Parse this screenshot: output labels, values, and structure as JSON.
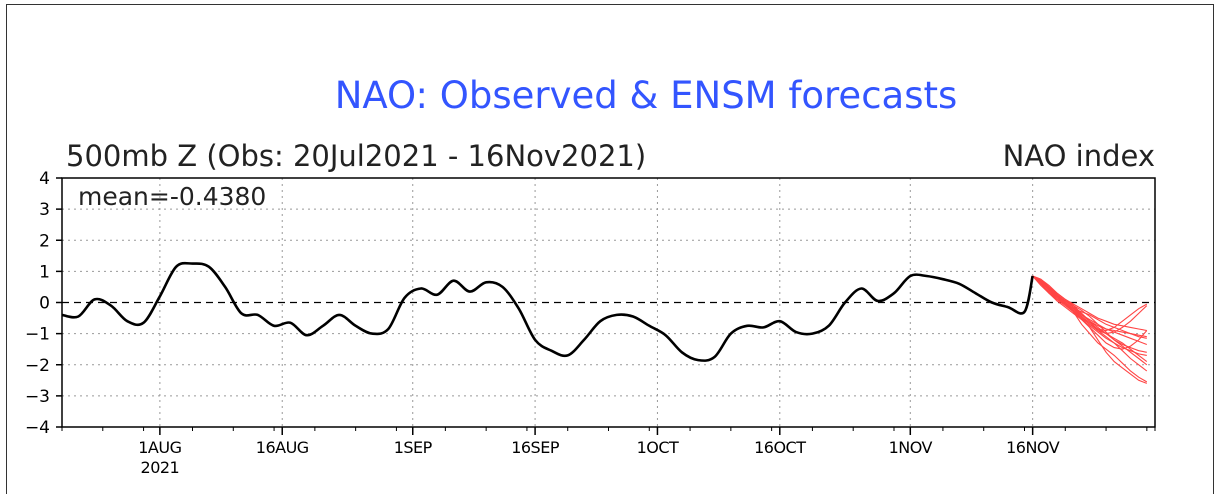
{
  "chart_data": {
    "type": "line",
    "title": "NAO: Observed & ENSM forecasts",
    "subtitle_left": "500mb Z (Obs: 20Jul2021 - 16Nov2021)",
    "subtitle_right": "NAO index",
    "annotation": "mean=-0.4380",
    "ylim": [
      -4,
      4
    ],
    "yticks": [
      4,
      3,
      2,
      1,
      0,
      -1,
      -2,
      -3,
      -4
    ],
    "x_range": [
      "2021-07-20",
      "2021-12-01"
    ],
    "x_ticks": [
      {
        "date": "2021-08-01",
        "label": "1AUG",
        "year": "2021"
      },
      {
        "date": "2021-08-16",
        "label": "16AUG"
      },
      {
        "date": "2021-09-01",
        "label": "1SEP"
      },
      {
        "date": "2021-09-16",
        "label": "16SEP"
      },
      {
        "date": "2021-10-01",
        "label": "1OCT"
      },
      {
        "date": "2021-10-16",
        "label": "16OCT"
      },
      {
        "date": "2021-11-01",
        "label": "1NOV"
      },
      {
        "date": "2021-11-16",
        "label": "16NOV"
      }
    ],
    "grid": true,
    "zero_line": "dashed",
    "colors": {
      "observed": "#000000",
      "forecast": "#ff4444",
      "title": "#3355ff"
    },
    "observed": {
      "x": [
        "2021-07-20",
        "2021-07-22",
        "2021-07-24",
        "2021-07-26",
        "2021-07-28",
        "2021-07-30",
        "2021-08-01",
        "2021-08-03",
        "2021-08-05",
        "2021-08-07",
        "2021-08-09",
        "2021-08-11",
        "2021-08-13",
        "2021-08-15",
        "2021-08-17",
        "2021-08-19",
        "2021-08-21",
        "2021-08-23",
        "2021-08-25",
        "2021-08-27",
        "2021-08-29",
        "2021-08-31",
        "2021-09-02",
        "2021-09-04",
        "2021-09-06",
        "2021-09-08",
        "2021-09-10",
        "2021-09-12",
        "2021-09-14",
        "2021-09-16",
        "2021-09-18",
        "2021-09-20",
        "2021-09-22",
        "2021-09-24",
        "2021-09-26",
        "2021-09-28",
        "2021-09-30",
        "2021-10-02",
        "2021-10-04",
        "2021-10-06",
        "2021-10-08",
        "2021-10-10",
        "2021-10-12",
        "2021-10-14",
        "2021-10-16",
        "2021-10-18",
        "2021-10-20",
        "2021-10-22",
        "2021-10-24",
        "2021-10-26",
        "2021-10-28",
        "2021-10-30",
        "2021-11-01",
        "2021-11-03",
        "2021-11-05",
        "2021-11-07",
        "2021-11-09",
        "2021-11-11",
        "2021-11-13",
        "2021-11-15",
        "2021-11-16"
      ],
      "y": [
        -0.4,
        -0.45,
        0.1,
        -0.1,
        -0.6,
        -0.65,
        0.2,
        1.15,
        1.25,
        1.15,
        0.5,
        -0.35,
        -0.4,
        -0.75,
        -0.65,
        -1.05,
        -0.75,
        -0.4,
        -0.75,
        -1.0,
        -0.85,
        0.15,
        0.45,
        0.25,
        0.7,
        0.35,
        0.65,
        0.5,
        -0.2,
        -1.2,
        -1.55,
        -1.7,
        -1.2,
        -0.6,
        -0.4,
        -0.45,
        -0.75,
        -1.05,
        -1.6,
        -1.85,
        -1.75,
        -1.0,
        -0.75,
        -0.8,
        -0.6,
        -0.95,
        -1.0,
        -0.75,
        0.0,
        0.45,
        0.05,
        0.3,
        0.85,
        0.85,
        0.75,
        0.6,
        0.3,
        0.0,
        -0.15,
        -0.3,
        0.85
      ]
    },
    "forecasts_start": "2021-11-16",
    "forecast_days": [
      0,
      1,
      2,
      3,
      4,
      5,
      6,
      7,
      8,
      9,
      10,
      11,
      12,
      13,
      14
    ],
    "forecasts": [
      [
        0.85,
        0.6,
        0.35,
        0.1,
        -0.05,
        -0.25,
        -0.5,
        -0.8,
        -1.2,
        -1.6,
        -1.9,
        -2.1,
        -2.3,
        -2.5,
        -2.6
      ],
      [
        0.85,
        0.7,
        0.5,
        0.25,
        0.0,
        -0.3,
        -0.7,
        -1.0,
        -1.3,
        -1.5,
        -1.7,
        -1.95,
        -2.2,
        -2.4,
        -2.55
      ],
      [
        0.85,
        0.65,
        0.4,
        0.2,
        0.05,
        -0.1,
        -0.35,
        -0.6,
        -0.9,
        -1.1,
        -1.3,
        -1.55,
        -1.8,
        -2.0,
        -2.2
      ],
      [
        0.85,
        0.75,
        0.55,
        0.3,
        0.1,
        -0.1,
        -0.25,
        -0.45,
        -0.7,
        -0.95,
        -1.2,
        -1.4,
        -1.6,
        -1.8,
        -2.0
      ],
      [
        0.85,
        0.6,
        0.3,
        0.05,
        -0.15,
        -0.35,
        -0.55,
        -0.75,
        -0.95,
        -1.15,
        -1.3,
        -1.45,
        -1.55,
        -1.65,
        -1.7
      ],
      [
        0.85,
        0.7,
        0.45,
        0.2,
        0.0,
        -0.2,
        -0.4,
        -0.55,
        -0.7,
        -0.85,
        -0.95,
        -1.05,
        -1.15,
        -1.25,
        -1.35
      ],
      [
        0.85,
        0.65,
        0.4,
        0.15,
        -0.05,
        -0.2,
        -0.3,
        -0.4,
        -0.55,
        -0.7,
        -0.8,
        -0.9,
        -1.0,
        -1.1,
        -1.15
      ],
      [
        0.85,
        0.7,
        0.5,
        0.3,
        0.1,
        -0.05,
        -0.2,
        -0.35,
        -0.5,
        -0.6,
        -0.7,
        -0.75,
        -0.8,
        -0.85,
        -0.9
      ],
      [
        0.85,
        0.55,
        0.3,
        0.1,
        -0.1,
        -0.3,
        -0.5,
        -0.7,
        -0.85,
        -0.9,
        -0.8,
        -0.6,
        -0.4,
        -0.2,
        -0.05
      ],
      [
        0.85,
        0.65,
        0.4,
        0.2,
        0.0,
        -0.2,
        -0.45,
        -0.7,
        -0.9,
        -1.0,
        -0.95,
        -0.8,
        -0.6,
        -0.35,
        -0.1
      ],
      [
        0.85,
        0.7,
        0.45,
        0.2,
        -0.05,
        -0.3,
        -0.55,
        -0.8,
        -1.05,
        -1.3,
        -1.45,
        -1.5,
        -1.4,
        -1.2,
        -0.9
      ],
      [
        0.85,
        0.6,
        0.35,
        0.15,
        -0.05,
        -0.25,
        -0.45,
        -0.65,
        -0.85,
        -1.0,
        -1.15,
        -1.3,
        -1.5,
        -1.7,
        -1.9
      ],
      [
        0.85,
        0.75,
        0.5,
        0.25,
        0.05,
        -0.15,
        -0.35,
        -0.6,
        -0.8,
        -1.0,
        -1.2,
        -1.35,
        -1.45,
        -1.55,
        -1.6
      ],
      [
        0.85,
        0.65,
        0.45,
        0.25,
        0.05,
        -0.15,
        -0.4,
        -0.6,
        -0.75,
        -0.85,
        -0.9,
        -0.95,
        -1.0,
        -1.05,
        -1.1
      ]
    ]
  }
}
